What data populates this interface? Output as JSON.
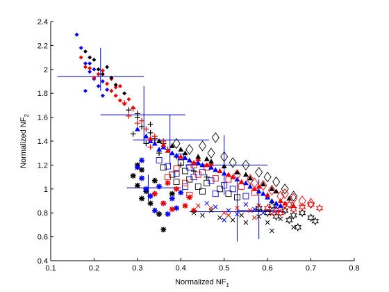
{
  "chart_data": {
    "type": "scatter",
    "title": "",
    "xlabel": "Normalized NF",
    "xlabel_sub": "1",
    "ylabel": "Normalized NF",
    "ylabel_sub": "2",
    "xlim": [
      0.1,
      0.8
    ],
    "ylim": [
      0.4,
      2.4
    ],
    "xticks": [
      "0.1",
      "0.2",
      "0.3",
      "0.4",
      "0.5",
      "0.6",
      "0.7",
      "0.8"
    ],
    "yticks": [
      "0.4",
      "0.6",
      "0.8",
      "1",
      "1.2",
      "1.4",
      "1.6",
      "1.8",
      "2",
      "2.2",
      "2.4"
    ],
    "grid": false,
    "legend": "none",
    "colors": {
      "blue": "#0000ff",
      "red": "#ee0000",
      "black": "#000000"
    },
    "series": [
      {
        "marker": "diamond-filled",
        "color": "blue",
        "points": [
          [
            0.16,
            2.29
          ],
          [
            0.17,
            2.18
          ],
          [
            0.18,
            2.05
          ],
          [
            0.19,
            1.98
          ],
          [
            0.2,
            1.92
          ],
          [
            0.21,
            1.86
          ],
          [
            0.22,
            1.9
          ],
          [
            0.23,
            1.83
          ],
          [
            0.19,
            2.05
          ],
          [
            0.2,
            2.0
          ],
          [
            0.21,
            1.96
          ],
          [
            0.18,
            1.82
          ],
          [
            0.22,
            1.78
          ]
        ]
      },
      {
        "marker": "diamond-filled",
        "color": "red",
        "points": [
          [
            0.17,
            2.1
          ],
          [
            0.19,
            2.01
          ],
          [
            0.21,
            1.96
          ],
          [
            0.2,
            1.93
          ],
          [
            0.23,
            1.88
          ],
          [
            0.24,
            1.82
          ],
          [
            0.25,
            1.78
          ],
          [
            0.26,
            1.74
          ],
          [
            0.27,
            1.71
          ],
          [
            0.22,
            1.99
          ],
          [
            0.24,
            1.92
          ],
          [
            0.26,
            1.86
          ],
          [
            0.28,
            1.75
          ],
          [
            0.29,
            1.68
          ],
          [
            0.18,
            2.02
          ],
          [
            0.25,
            1.85
          ]
        ]
      },
      {
        "marker": "diamond-filled",
        "color": "black",
        "points": [
          [
            0.18,
            2.15
          ],
          [
            0.2,
            2.08
          ],
          [
            0.21,
            2.0
          ],
          [
            0.22,
            1.96
          ],
          [
            0.24,
            1.93
          ],
          [
            0.25,
            1.87
          ],
          [
            0.23,
            2.02
          ],
          [
            0.27,
            1.8
          ],
          [
            0.19,
            2.1
          ]
        ]
      },
      {
        "marker": "plus",
        "color": "black",
        "points": [
          [
            0.28,
            1.66
          ],
          [
            0.3,
            1.6
          ],
          [
            0.31,
            1.52
          ],
          [
            0.33,
            1.47
          ],
          [
            0.34,
            1.42
          ],
          [
            0.36,
            1.38
          ],
          [
            0.37,
            1.33
          ],
          [
            0.39,
            1.27
          ],
          [
            0.29,
            1.46
          ],
          [
            0.32,
            1.38
          ],
          [
            0.35,
            1.3
          ],
          [
            0.4,
            1.2
          ],
          [
            0.43,
            1.15
          ],
          [
            0.46,
            1.1
          ],
          [
            0.3,
            1.63
          ],
          [
            0.33,
            1.54
          ]
        ]
      },
      {
        "marker": "plus",
        "color": "red",
        "points": [
          [
            0.27,
            1.72
          ],
          [
            0.29,
            1.67
          ],
          [
            0.31,
            1.57
          ],
          [
            0.32,
            1.5
          ],
          [
            0.34,
            1.44
          ],
          [
            0.36,
            1.4
          ],
          [
            0.3,
            1.55
          ],
          [
            0.33,
            1.35
          ],
          [
            0.28,
            1.61
          ]
        ]
      },
      {
        "marker": "star",
        "color": "black",
        "points": [
          [
            0.29,
            1.11
          ],
          [
            0.3,
            1.03
          ],
          [
            0.31,
            1.16
          ],
          [
            0.33,
            0.88
          ],
          [
            0.35,
            0.79
          ],
          [
            0.36,
            0.66
          ],
          [
            0.32,
            0.98
          ],
          [
            0.3,
            1.2
          ],
          [
            0.34,
            1.07
          ],
          [
            0.38,
            0.96
          ],
          [
            0.31,
            0.92
          ]
        ]
      },
      {
        "marker": "star",
        "color": "blue",
        "points": [
          [
            0.3,
            1.18
          ],
          [
            0.31,
            1.09
          ],
          [
            0.32,
            1.0
          ],
          [
            0.33,
            0.94
          ],
          [
            0.34,
            0.82
          ],
          [
            0.37,
            0.79
          ],
          [
            0.39,
            0.84
          ],
          [
            0.36,
            0.88
          ],
          [
            0.35,
            1.02
          ],
          [
            0.31,
            1.24
          ],
          [
            0.38,
            0.92
          ],
          [
            0.4,
            0.97
          ]
        ]
      },
      {
        "marker": "star",
        "color": "red",
        "points": [
          [
            0.34,
            0.96
          ],
          [
            0.36,
            0.88
          ],
          [
            0.38,
            0.83
          ],
          [
            0.41,
            0.86
          ],
          [
            0.43,
            0.82
          ],
          [
            0.39,
            1.0
          ],
          [
            0.42,
            0.93
          ],
          [
            0.37,
            1.05
          ]
        ]
      },
      {
        "marker": "square",
        "color": "black",
        "points": [
          [
            0.36,
            1.18
          ],
          [
            0.38,
            1.12
          ],
          [
            0.39,
            1.06
          ],
          [
            0.41,
            1.15
          ],
          [
            0.42,
            1.08
          ],
          [
            0.44,
            1.02
          ],
          [
            0.46,
            1.05
          ],
          [
            0.49,
            1.0
          ],
          [
            0.51,
            0.96
          ],
          [
            0.53,
            0.93
          ],
          [
            0.4,
            1.22
          ],
          [
            0.45,
            0.98
          ]
        ]
      },
      {
        "marker": "square",
        "color": "blue",
        "points": [
          [
            0.35,
            1.24
          ],
          [
            0.37,
            1.19
          ],
          [
            0.39,
            1.13
          ],
          [
            0.4,
            1.27
          ],
          [
            0.42,
            1.18
          ],
          [
            0.43,
            1.1
          ],
          [
            0.45,
            1.14
          ],
          [
            0.47,
            1.07
          ],
          [
            0.5,
            1.03
          ],
          [
            0.52,
            1.0
          ],
          [
            0.55,
            0.94
          ],
          [
            0.41,
            1.02
          ],
          [
            0.48,
            0.96
          ]
        ]
      },
      {
        "marker": "square",
        "color": "red",
        "points": [
          [
            0.37,
            1.1
          ],
          [
            0.39,
            1.17
          ],
          [
            0.41,
            1.05
          ],
          [
            0.43,
            1.2
          ],
          [
            0.44,
            1.12
          ],
          [
            0.46,
            1.18
          ],
          [
            0.48,
            1.09
          ],
          [
            0.51,
            1.08
          ],
          [
            0.54,
            1.02
          ],
          [
            0.57,
            0.97
          ],
          [
            0.42,
            0.95
          ]
        ]
      },
      {
        "marker": "triangle",
        "color": "blue",
        "points": [
          [
            0.3,
            1.5
          ],
          [
            0.32,
            1.44
          ],
          [
            0.34,
            1.38
          ],
          [
            0.36,
            1.35
          ],
          [
            0.38,
            1.3
          ],
          [
            0.41,
            1.26
          ],
          [
            0.44,
            1.22
          ],
          [
            0.47,
            1.18
          ],
          [
            0.5,
            1.13
          ],
          [
            0.53,
            1.08
          ],
          [
            0.56,
            1.02
          ],
          [
            0.59,
            0.96
          ],
          [
            0.61,
            0.9
          ],
          [
            0.63,
            0.86
          ],
          [
            0.33,
            1.4
          ],
          [
            0.39,
            1.28
          ],
          [
            0.45,
            1.2
          ],
          [
            0.52,
            1.1
          ],
          [
            0.58,
            0.98
          ],
          [
            0.35,
            1.33
          ],
          [
            0.42,
            1.24
          ],
          [
            0.48,
            1.16
          ],
          [
            0.55,
            1.05
          ],
          [
            0.6,
            0.93
          ],
          [
            0.62,
            0.88
          ]
        ]
      },
      {
        "marker": "triangle",
        "color": "red",
        "points": [
          [
            0.33,
            1.42
          ],
          [
            0.37,
            1.32
          ],
          [
            0.4,
            1.27
          ],
          [
            0.43,
            1.22
          ],
          [
            0.46,
            1.2
          ],
          [
            0.49,
            1.15
          ],
          [
            0.51,
            1.12
          ],
          [
            0.54,
            1.06
          ],
          [
            0.57,
            1.0
          ],
          [
            0.6,
            0.95
          ],
          [
            0.63,
            0.9
          ],
          [
            0.66,
            0.86
          ],
          [
            0.36,
            1.37
          ],
          [
            0.44,
            1.25
          ],
          [
            0.52,
            1.1
          ],
          [
            0.58,
            1.02
          ],
          [
            0.64,
            0.88
          ],
          [
            0.47,
            1.21
          ]
        ]
      },
      {
        "marker": "triangle",
        "color": "black",
        "points": [
          [
            0.35,
            1.4
          ],
          [
            0.38,
            1.36
          ],
          [
            0.41,
            1.3
          ],
          [
            0.44,
            1.27
          ],
          [
            0.47,
            1.23
          ],
          [
            0.5,
            1.19
          ],
          [
            0.53,
            1.14
          ],
          [
            0.56,
            1.09
          ],
          [
            0.59,
            1.04
          ],
          [
            0.62,
            0.98
          ],
          [
            0.65,
            0.92
          ],
          [
            0.4,
            1.33
          ],
          [
            0.46,
            1.25
          ],
          [
            0.55,
            1.12
          ],
          [
            0.61,
            1.0
          ]
        ]
      },
      {
        "marker": "diamond-open",
        "color": "black",
        "points": [
          [
            0.39,
            1.38
          ],
          [
            0.42,
            1.33
          ],
          [
            0.45,
            1.36
          ],
          [
            0.47,
            1.3
          ],
          [
            0.5,
            1.27
          ],
          [
            0.52,
            1.22
          ],
          [
            0.55,
            1.2
          ],
          [
            0.58,
            1.14
          ],
          [
            0.6,
            1.1
          ],
          [
            0.62,
            1.06
          ],
          [
            0.64,
            1.0
          ],
          [
            0.66,
            0.94
          ],
          [
            0.48,
            1.43
          ]
        ]
      },
      {
        "marker": "diamond-open",
        "color": "red",
        "points": [
          [
            0.53,
            1.12
          ],
          [
            0.56,
            1.08
          ],
          [
            0.59,
            1.03
          ],
          [
            0.61,
            0.99
          ],
          [
            0.64,
            0.96
          ],
          [
            0.66,
            0.92
          ],
          [
            0.68,
            0.9
          ],
          [
            0.7,
            0.88
          ],
          [
            0.63,
            0.94
          ],
          [
            0.57,
            1.05
          ]
        ]
      },
      {
        "marker": "hexagram",
        "color": "black",
        "points": [
          [
            0.58,
            0.84
          ],
          [
            0.6,
            0.8
          ],
          [
            0.62,
            0.77
          ],
          [
            0.64,
            0.82
          ],
          [
            0.66,
            0.78
          ],
          [
            0.68,
            0.8
          ],
          [
            0.7,
            0.76
          ],
          [
            0.71,
            0.73
          ],
          [
            0.67,
            0.68
          ],
          [
            0.61,
            0.86
          ],
          [
            0.65,
            0.74
          ]
        ]
      },
      {
        "marker": "hexagram",
        "color": "red",
        "points": [
          [
            0.6,
            0.84
          ],
          [
            0.63,
            0.8
          ],
          [
            0.66,
            0.83
          ],
          [
            0.68,
            0.85
          ],
          [
            0.7,
            0.87
          ],
          [
            0.72,
            0.84
          ],
          [
            0.65,
            0.87
          ],
          [
            0.62,
            0.82
          ]
        ]
      },
      {
        "marker": "cross",
        "color": "black",
        "points": [
          [
            0.43,
            0.8
          ],
          [
            0.45,
            0.78
          ],
          [
            0.47,
            0.82
          ],
          [
            0.49,
            0.76
          ],
          [
            0.52,
            0.74
          ],
          [
            0.55,
            0.72
          ],
          [
            0.58,
            0.77
          ],
          [
            0.6,
            0.72
          ],
          [
            0.63,
            0.75
          ],
          [
            0.66,
            0.68
          ],
          [
            0.61,
            0.65
          ],
          [
            0.54,
            0.78
          ]
        ]
      },
      {
        "marker": "cross",
        "color": "red",
        "points": [
          [
            0.44,
            0.86
          ],
          [
            0.47,
            0.84
          ],
          [
            0.5,
            0.8
          ],
          [
            0.53,
            0.84
          ],
          [
            0.56,
            0.82
          ],
          [
            0.58,
            0.86
          ],
          [
            0.61,
            0.79
          ],
          [
            0.64,
            0.84
          ],
          [
            0.57,
            0.76
          ],
          [
            0.51,
            0.78
          ]
        ]
      },
      {
        "marker": "cross",
        "color": "blue",
        "points": [
          [
            0.46,
            0.88
          ],
          [
            0.48,
            0.85
          ],
          [
            0.51,
            0.82
          ],
          [
            0.53,
            0.79
          ],
          [
            0.55,
            0.87
          ],
          [
            0.57,
            0.83
          ],
          [
            0.59,
            0.8
          ],
          [
            0.62,
            0.85
          ],
          [
            0.5,
            0.74
          ]
        ]
      }
    ],
    "error_bars": [
      {
        "x": 0.215,
        "y": 1.94,
        "x_range": [
          0.115,
          0.315
        ],
        "y_range": [
          1.82,
          2.18
        ]
      },
      {
        "x": 0.315,
        "y": 1.62,
        "x_range": [
          0.215,
          0.41
        ],
        "y_range": [
          1.38,
          1.86
        ]
      },
      {
        "x": 0.375,
        "y": 1.41,
        "x_range": [
          0.29,
          0.465
        ],
        "y_range": [
          1.2,
          1.62
        ]
      },
      {
        "x": 0.5,
        "y": 1.2,
        "x_range": [
          0.41,
          0.6
        ],
        "y_range": [
          0.95,
          1.45
        ]
      },
      {
        "x": 0.325,
        "y": 1.01,
        "x_range": [
          0.275,
          0.4
        ],
        "y_range": [
          0.9,
          1.12
        ]
      },
      {
        "x": 0.53,
        "y": 0.81,
        "x_range": [
          0.42,
          0.64
        ],
        "y_range": [
          0.56,
          1.06
        ]
      },
      {
        "x": 0.58,
        "y": 0.82,
        "x_range": [
          0.53,
          0.63
        ],
        "y_range": [
          0.58,
          1.08
        ]
      }
    ]
  }
}
